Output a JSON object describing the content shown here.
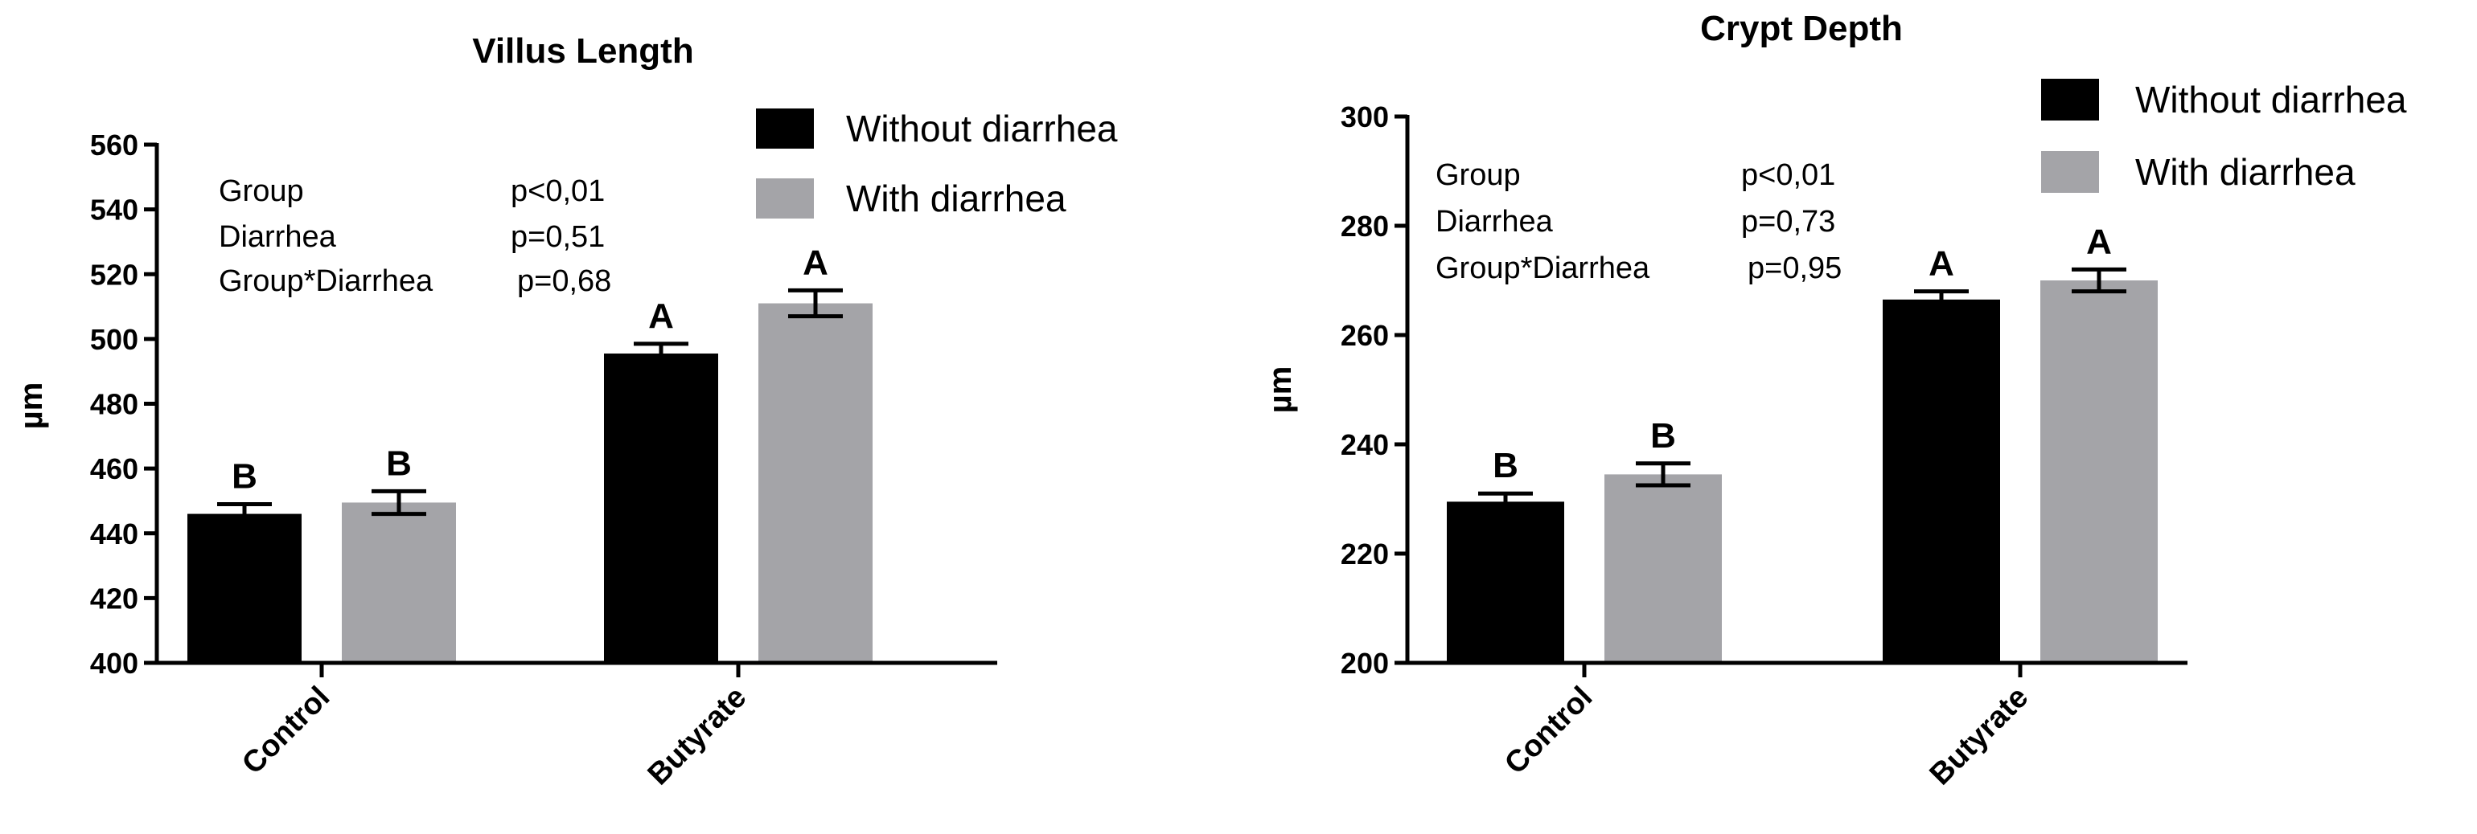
{
  "chart_data": [
    {
      "type": "bar",
      "title": "Villus Length",
      "ylabel": "µm",
      "xlabel": "",
      "categories": [
        "Control",
        "Butyrate"
      ],
      "ylim": [
        400,
        560
      ],
      "yticks": [
        400,
        420,
        440,
        460,
        480,
        500,
        520,
        540,
        560
      ],
      "series": [
        {
          "name": "Without diarrhea",
          "color": "#000000",
          "values": [
            446,
            495.5
          ],
          "errors": [
            3,
            3
          ],
          "letters": [
            "B",
            "A"
          ]
        },
        {
          "name": "With diarrhea",
          "color": "#a4a4a8",
          "values": [
            449.5,
            511
          ],
          "errors": [
            3.5,
            4
          ],
          "letters": [
            "B",
            "A"
          ]
        }
      ],
      "stats": [
        {
          "label": "Group",
          "p": "p<0,01"
        },
        {
          "label": "Diarrhea",
          "p": "p=0,51"
        },
        {
          "label": "Group*Diarrhea",
          "p": "p=0,68"
        }
      ],
      "legend_position": "top-right",
      "grid": false
    },
    {
      "type": "bar",
      "title": "Crypt Depth",
      "ylabel": "µm",
      "xlabel": "",
      "categories": [
        "Control",
        "Butyrate"
      ],
      "ylim": [
        200,
        300
      ],
      "yticks": [
        200,
        220,
        240,
        260,
        280,
        300
      ],
      "series": [
        {
          "name": "Without diarrhea",
          "color": "#000000",
          "values": [
            229.5,
            266.5
          ],
          "errors": [
            1.5,
            1.5
          ],
          "letters": [
            "B",
            "A"
          ]
        },
        {
          "name": "With diarrhea",
          "color": "#a4a4a8",
          "values": [
            234.5,
            270
          ],
          "errors": [
            2,
            2
          ],
          "letters": [
            "B",
            "A"
          ]
        }
      ],
      "stats": [
        {
          "label": "Group",
          "p": "p<0,01"
        },
        {
          "label": "Diarrhea",
          "p": "p=0,73"
        },
        {
          "label": "Group*Diarrhea",
          "p": "p=0,95"
        }
      ],
      "legend_position": "top-right",
      "grid": false
    }
  ]
}
